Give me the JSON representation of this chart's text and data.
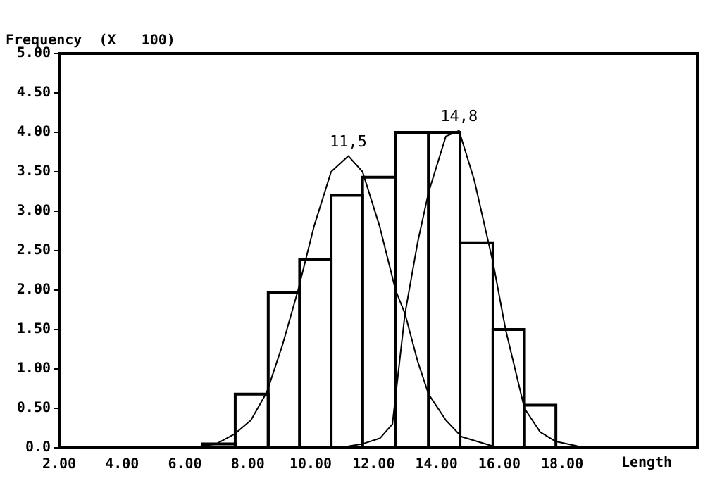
{
  "chart_data": {
    "type": "histogram",
    "ylabel": "Frequency  (X   100)",
    "xlabel": "Length",
    "bins": [
      6.55,
      7.6,
      8.65,
      9.65,
      10.65,
      11.65,
      12.7,
      13.75,
      14.75,
      15.8,
      16.8,
      17.8
    ],
    "values": [
      0.05,
      0.68,
      1.97,
      2.39,
      3.2,
      3.43,
      4.0,
      4.0,
      2.6,
      1.5,
      0.54
    ],
    "color": "#000000",
    "series": [
      {
        "type": "line",
        "color": "#000000",
        "x": [
          2,
          5,
          6,
          6.5,
          7,
          7.6,
          8.1,
          8.6,
          9.1,
          9.6,
          10.1,
          10.65,
          11.2,
          11.65,
          12.2,
          12.7,
          13.0,
          13.4,
          13.75,
          14.3,
          14.8,
          15.8,
          17,
          18.5
        ],
        "values": [
          0,
          0,
          0.01,
          0.02,
          0.05,
          0.18,
          0.35,
          0.7,
          1.3,
          2.0,
          2.8,
          3.5,
          3.7,
          3.5,
          2.8,
          2.0,
          1.7,
          1.1,
          0.68,
          0.35,
          0.14,
          0.02,
          0,
          0
        ]
      },
      {
        "type": "line",
        "color": "#000000",
        "x": [
          10.5,
          11.2,
          11.65,
          12.2,
          12.6,
          13.0,
          13.4,
          13.75,
          14.3,
          14.72,
          15.2,
          15.8,
          16.2,
          16.8,
          17.3,
          17.8,
          18.5,
          19.5,
          22
        ],
        "values": [
          0,
          0.02,
          0.05,
          0.12,
          0.3,
          1.7,
          2.6,
          3.24,
          3.95,
          4.02,
          3.4,
          2.35,
          1.5,
          0.5,
          0.2,
          0.08,
          0.02,
          0,
          0
        ]
      }
    ],
    "annotations": [
      {
        "text": "11,5",
        "x": 11.2,
        "y": 3.7
      },
      {
        "text": "14,8",
        "x": 14.72,
        "y": 4.02
      }
    ],
    "xlim": [
      2,
      22.3
    ],
    "xticks": [
      {
        "value": 2,
        "label": "2.00"
      },
      {
        "value": 4,
        "label": "4.00"
      },
      {
        "value": 6,
        "label": "6.00"
      },
      {
        "value": 8,
        "label": "8.00"
      },
      {
        "value": 10,
        "label": "10.00"
      },
      {
        "value": 12,
        "label": "12.00"
      },
      {
        "value": 14,
        "label": "14.00"
      },
      {
        "value": 16,
        "label": "16.00"
      },
      {
        "value": 18,
        "label": "18.00"
      }
    ],
    "ylim": [
      0,
      5
    ],
    "yticks": [
      {
        "value": 0,
        "label": "0.0"
      },
      {
        "value": 0.5,
        "label": "0.50"
      },
      {
        "value": 1,
        "label": "1.00"
      },
      {
        "value": 1.5,
        "label": "1.50"
      },
      {
        "value": 2,
        "label": "2.00"
      },
      {
        "value": 2.5,
        "label": "2.50"
      },
      {
        "value": 3,
        "label": "3.00"
      },
      {
        "value": 3.5,
        "label": "3.50"
      },
      {
        "value": 4,
        "label": "4.00"
      },
      {
        "value": 4.5,
        "label": "4.50"
      },
      {
        "value": 5,
        "label": "5.00"
      }
    ],
    "grid": false,
    "legend": false
  }
}
